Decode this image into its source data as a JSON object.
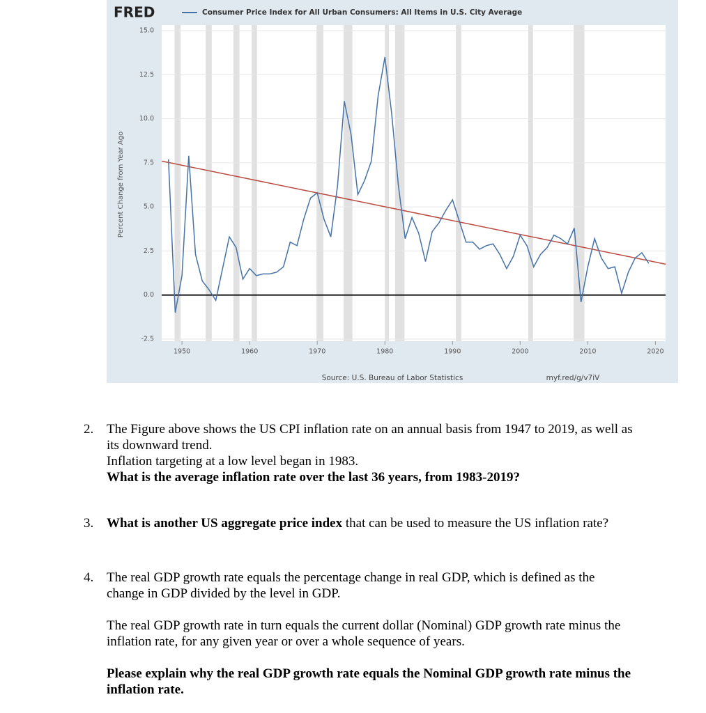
{
  "chart_data": {
    "type": "line",
    "logo": "FRED",
    "legend_label": "Consumer Price Index for All Urban Consumers: All Items in U.S. City Average",
    "y_label": "Percent Change from Year Ago",
    "source": "Source: U.S. Bureau of Labor Statistics",
    "link": "myf.red/g/v7iV",
    "x": [
      1948,
      1949,
      1950,
      1951,
      1952,
      1953,
      1954,
      1955,
      1956,
      1957,
      1958,
      1959,
      1960,
      1961,
      1962,
      1963,
      1964,
      1965,
      1966,
      1967,
      1968,
      1969,
      1970,
      1971,
      1972,
      1973,
      1974,
      1975,
      1976,
      1977,
      1978,
      1979,
      1980,
      1981,
      1982,
      1983,
      1984,
      1985,
      1986,
      1987,
      1988,
      1989,
      1990,
      1991,
      1992,
      1993,
      1994,
      1995,
      1996,
      1997,
      1998,
      1999,
      2000,
      2001,
      2002,
      2003,
      2004,
      2005,
      2006,
      2007,
      2008,
      2009,
      2010,
      2011,
      2012,
      2013,
      2014,
      2015,
      2016,
      2017,
      2018,
      2019
    ],
    "series": [
      {
        "color": "#4572a7",
        "values": [
          7.7,
          -1.0,
          1.1,
          7.9,
          2.3,
          0.8,
          0.3,
          -0.3,
          1.5,
          3.3,
          2.7,
          0.9,
          1.5,
          1.1,
          1.2,
          1.2,
          1.3,
          1.6,
          3.0,
          2.8,
          4.3,
          5.5,
          5.8,
          4.3,
          3.3,
          6.2,
          11.0,
          9.1,
          5.7,
          6.5,
          7.6,
          11.3,
          13.5,
          10.3,
          6.2,
          3.2,
          4.4,
          3.5,
          1.9,
          3.6,
          4.1,
          4.8,
          5.4,
          4.2,
          3.0,
          3.0,
          2.6,
          2.8,
          2.9,
          2.3,
          1.5,
          2.2,
          3.4,
          2.8,
          1.6,
          2.3,
          2.7,
          3.4,
          3.2,
          2.9,
          3.8,
          -0.4,
          1.6,
          3.2,
          2.1,
          1.5,
          1.6,
          0.1,
          1.3,
          2.1,
          2.4,
          1.8
        ]
      }
    ],
    "trend": {
      "color": "#b94a3f",
      "x": [
        1947,
        2021.5
      ],
      "values": [
        7.6,
        1.75
      ]
    },
    "recessions": {
      "color": "#e1e1e1",
      "periods": [
        [
          1948.9,
          1949.8
        ],
        [
          1953.5,
          1954.4
        ],
        [
          1957.6,
          1958.5
        ],
        [
          1960.3,
          1961.1
        ],
        [
          1969.9,
          1970.9
        ],
        [
          1973.9,
          1975.2
        ],
        [
          1980.0,
          1980.6
        ],
        [
          1981.5,
          1982.9
        ],
        [
          1990.5,
          1991.3
        ],
        [
          2001.2,
          2001.9
        ],
        [
          2007.9,
          2009.5
        ]
      ]
    },
    "xlim": [
      1947,
      2021.5
    ],
    "ylim": [
      -2.5,
      15
    ],
    "xticks": [
      1950,
      1960,
      1970,
      1980,
      1990,
      2000,
      2010,
      2020
    ],
    "yticks": [
      {
        "value": 15,
        "label": "15.0"
      },
      12.5,
      {
        "value": 10,
        "label": "10.0"
      },
      7.5,
      {
        "value": 5,
        "label": "5.0"
      },
      2.5,
      {
        "value": 0,
        "label": "0.0"
      },
      -2.5
    ],
    "grid": true
  },
  "document": {
    "items": [
      {
        "number": "2.",
        "paragraphs": [
          [
            {
              "text": "The Figure above shows the US CPI inflation rate on an annual basis from 1947 to 2019, as well as its downward trend."
            }
          ],
          [
            {
              "text": "Inflation targeting at a low level began in 1983."
            }
          ],
          [
            {
              "text": "What is the average inflation rate over the last 36 years, from 1983-2019?",
              "bold": true
            }
          ]
        ]
      },
      {
        "number": "3.",
        "paragraphs": [
          [
            {
              "text": "What is another US aggregate price index",
              "bold": true
            },
            {
              "text": " that can be used to measure the US inflation rate?"
            }
          ]
        ]
      },
      {
        "number": "4.",
        "paragraphs": [
          [
            {
              "text": "The real GDP growth rate equals the percentage change in real GDP, which is defined as the change in GDP divided by the level in GDP."
            }
          ],
          [
            {
              "text": "The real GDP growth rate in turn equals the current dollar (Nominal) GDP growth rate minus the inflation rate, for any given year or over a whole sequence of years."
            }
          ],
          [
            {
              "text": "Please explain why the real GDP growth rate equals the Nominal GDP growth rate minus the inflation rate.",
              "bold": true
            }
          ]
        ]
      }
    ]
  }
}
